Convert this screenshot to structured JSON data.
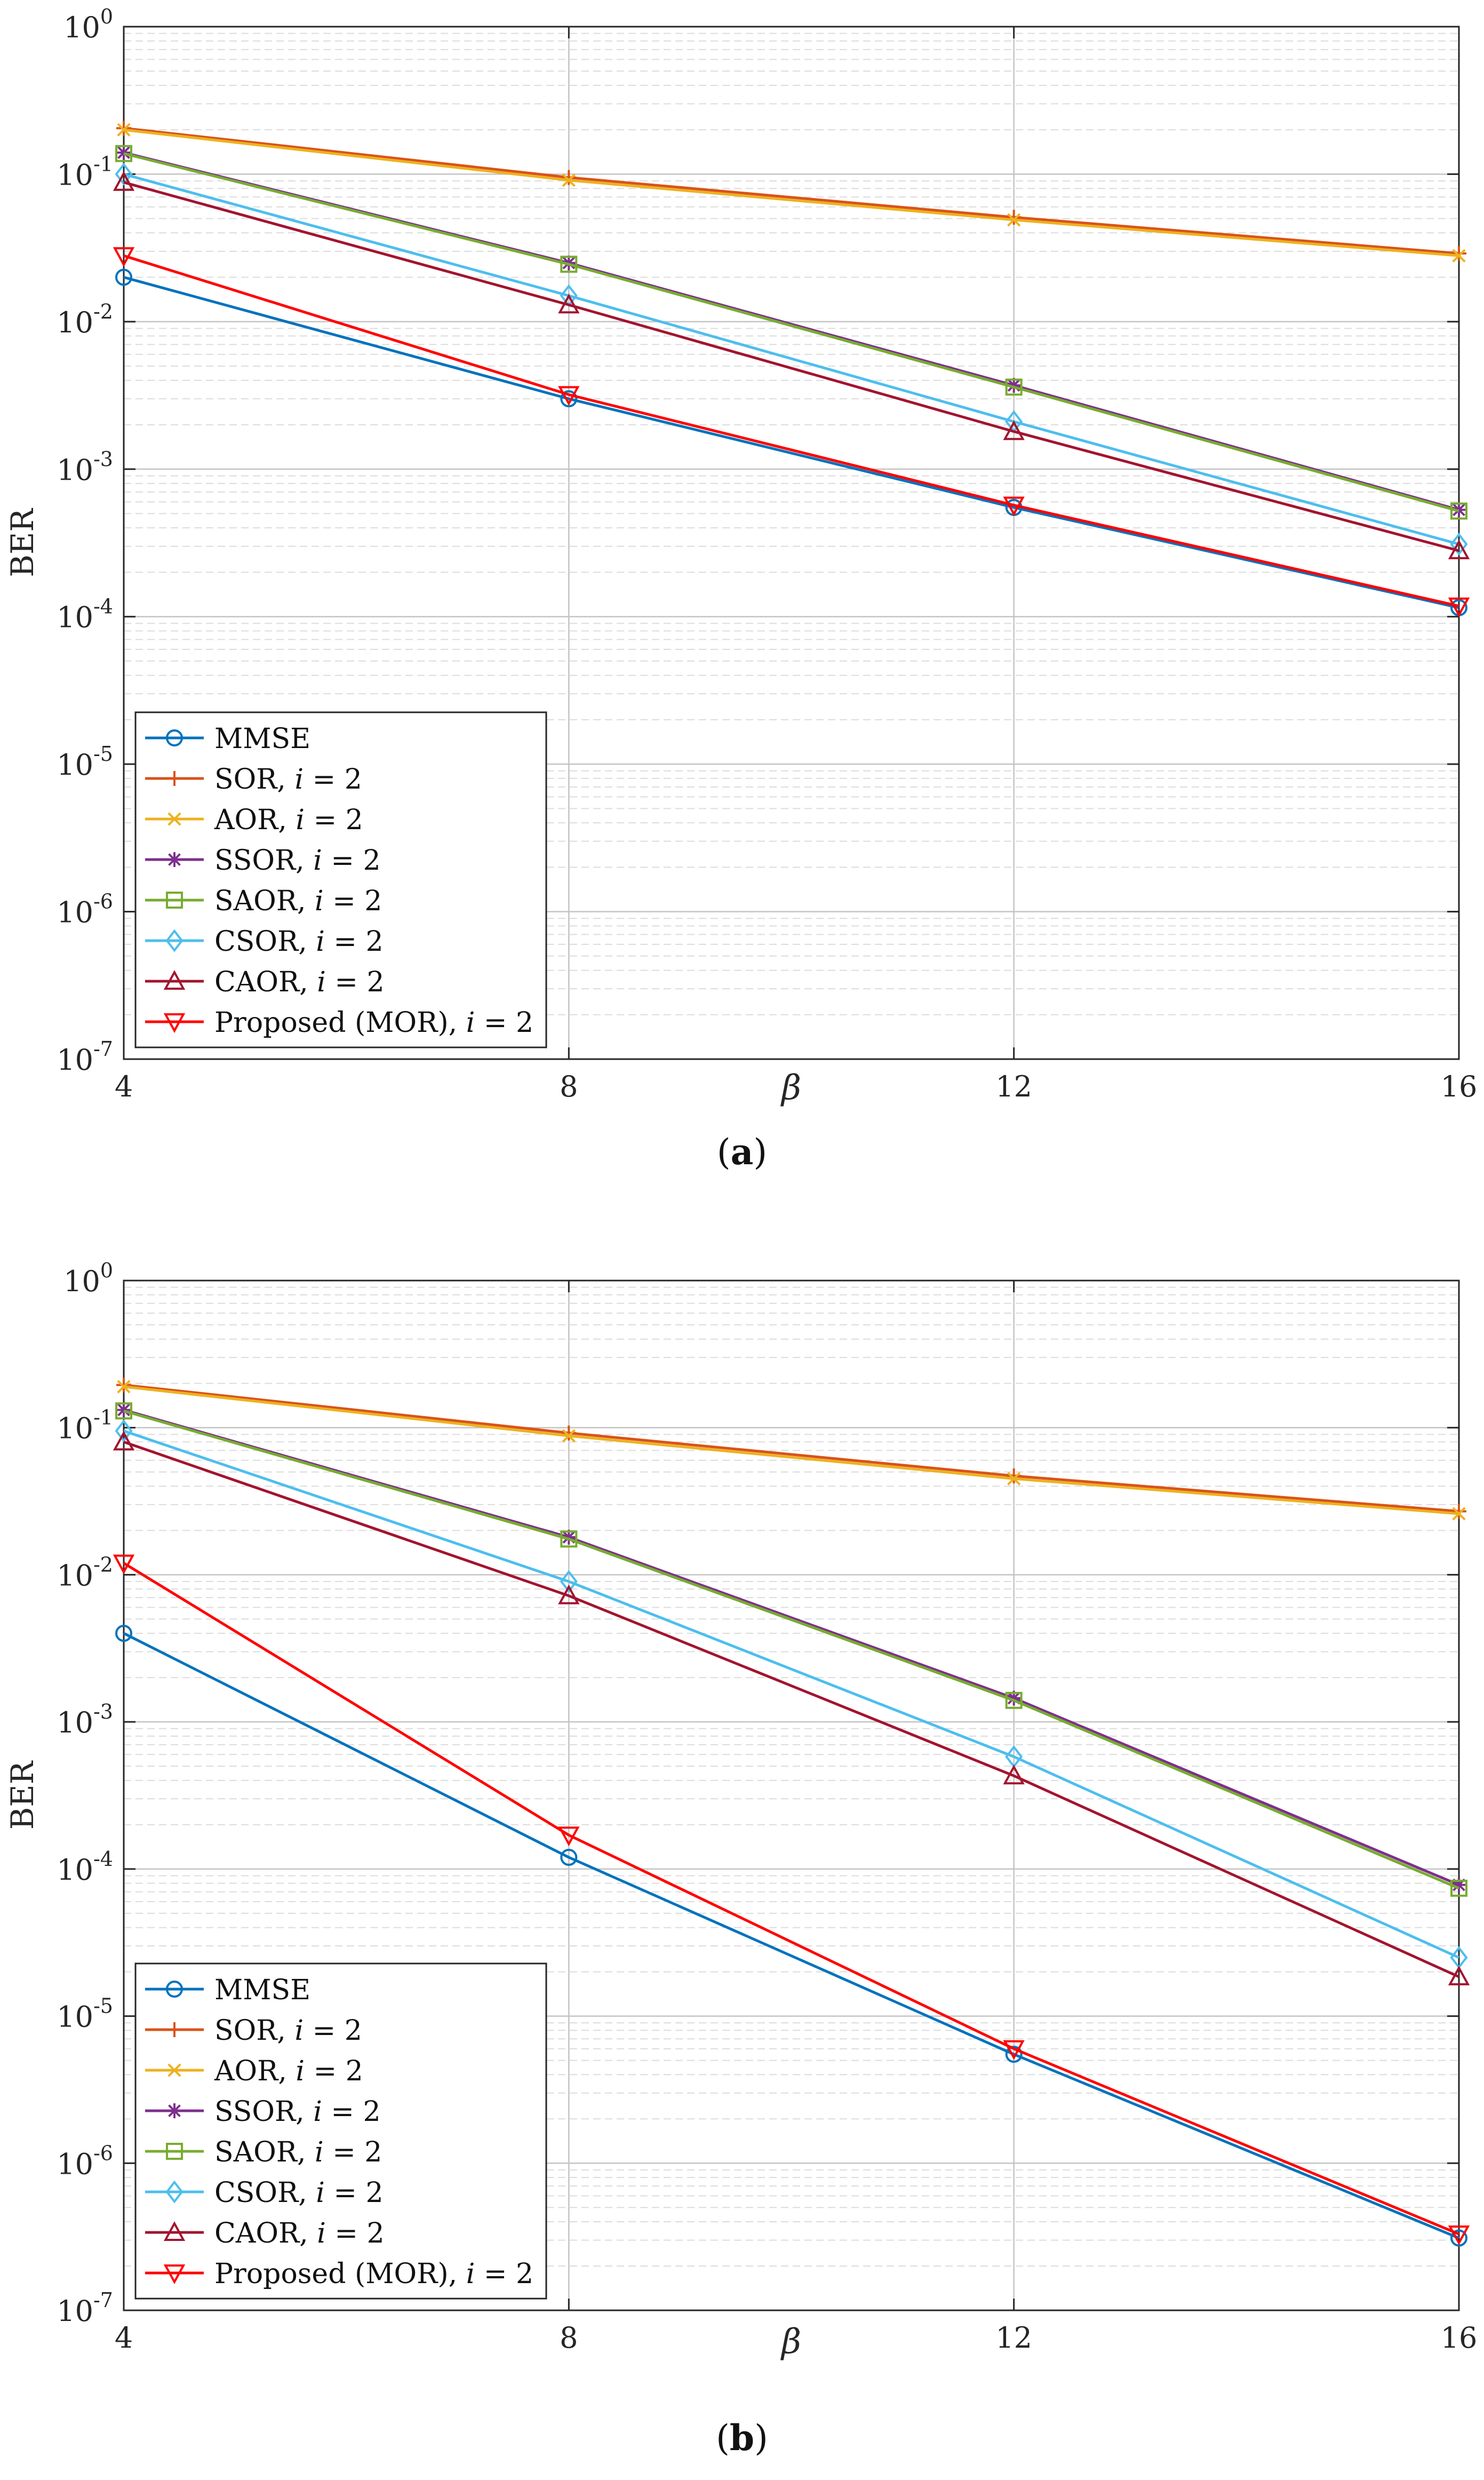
{
  "chart_data": [
    {
      "type": "line",
      "panel": "a",
      "caption": "a",
      "xlabel": "β",
      "ylabel": "BER",
      "yscale": "log",
      "ylim": [
        1e-07,
        1
      ],
      "xlim": [
        4,
        16
      ],
      "grid": true,
      "legend_position": "bottom-left",
      "x": [
        4,
        8,
        12,
        16
      ],
      "x_ticks": [
        "4",
        "8",
        "12",
        "16"
      ],
      "y_ticks": [
        {
          "base": "10",
          "exp": "0"
        },
        {
          "base": "10",
          "exp": "-1"
        },
        {
          "base": "10",
          "exp": "-2"
        },
        {
          "base": "10",
          "exp": "-3"
        },
        {
          "base": "10",
          "exp": "-4"
        },
        {
          "base": "10",
          "exp": "-5"
        },
        {
          "base": "10",
          "exp": "-6"
        },
        {
          "base": "10",
          "exp": "-7"
        }
      ],
      "series": [
        {
          "name": "MMSE",
          "legend_main": "MMSE",
          "legend_i": "",
          "legend_rest": "",
          "color": "#0072BD",
          "marker": "circle",
          "values": [
            0.02,
            0.003,
            0.00055,
            0.000115
          ]
        },
        {
          "name": "SOR, i = 2",
          "legend_main": "SOR, ",
          "legend_i": "i",
          "legend_rest": " = 2",
          "color": "#D95319",
          "marker": "plus",
          "values": [
            0.205,
            0.095,
            0.051,
            0.029
          ]
        },
        {
          "name": "AOR, i = 2",
          "legend_main": "AOR, ",
          "legend_i": "i",
          "legend_rest": " = 2",
          "color": "#EDB120",
          "marker": "x",
          "values": [
            0.2,
            0.091,
            0.049,
            0.028
          ]
        },
        {
          "name": "SSOR, i = 2",
          "legend_main": "SSOR, ",
          "legend_i": "i",
          "legend_rest": " = 2",
          "color": "#7E2F8E",
          "marker": "star",
          "values": [
            0.14,
            0.025,
            0.0037,
            0.00053
          ]
        },
        {
          "name": "SAOR, i = 2",
          "legend_main": "SAOR, ",
          "legend_i": "i",
          "legend_rest": " = 2",
          "color": "#77AC30",
          "marker": "square",
          "values": [
            0.138,
            0.0245,
            0.0036,
            0.00052
          ]
        },
        {
          "name": "CSOR, i = 2",
          "legend_main": "CSOR, ",
          "legend_i": "i",
          "legend_rest": " = 2",
          "color": "#4DBEEE",
          "marker": "diamond",
          "values": [
            0.1,
            0.015,
            0.0021,
            0.00031
          ]
        },
        {
          "name": "CAOR, i = 2",
          "legend_main": "CAOR, ",
          "legend_i": "i",
          "legend_rest": " = 2",
          "color": "#A2142F",
          "marker": "triangle-up",
          "values": [
            0.088,
            0.013,
            0.0018,
            0.00028
          ]
        },
        {
          "name": "Proposed (MOR), i = 2",
          "legend_main": "Proposed (MOR), ",
          "legend_i": "i",
          "legend_rest": " = 2",
          "color": "#FF0000",
          "marker": "triangle-down",
          "values": [
            0.028,
            0.0032,
            0.00057,
            0.000118
          ]
        }
      ]
    },
    {
      "type": "line",
      "panel": "b",
      "caption": "b",
      "xlabel": "β",
      "ylabel": "BER",
      "yscale": "log",
      "ylim": [
        1e-07,
        1
      ],
      "xlim": [
        4,
        16
      ],
      "grid": true,
      "legend_position": "bottom-left",
      "x": [
        4,
        8,
        12,
        16
      ],
      "x_ticks": [
        "4",
        "8",
        "12",
        "16"
      ],
      "y_ticks": [
        {
          "base": "10",
          "exp": "0"
        },
        {
          "base": "10",
          "exp": "-1"
        },
        {
          "base": "10",
          "exp": "-2"
        },
        {
          "base": "10",
          "exp": "-3"
        },
        {
          "base": "10",
          "exp": "-4"
        },
        {
          "base": "10",
          "exp": "-5"
        },
        {
          "base": "10",
          "exp": "-6"
        },
        {
          "base": "10",
          "exp": "-7"
        }
      ],
      "series": [
        {
          "name": "MMSE",
          "legend_main": "MMSE",
          "legend_i": "",
          "legend_rest": "",
          "color": "#0072BD",
          "marker": "circle",
          "values": [
            0.004,
            0.00012,
            5.5e-06,
            3.1e-07
          ]
        },
        {
          "name": "SOR, i = 2",
          "legend_main": "SOR, ",
          "legend_i": "i",
          "legend_rest": " = 2",
          "color": "#D95319",
          "marker": "plus",
          "values": [
            0.195,
            0.092,
            0.047,
            0.027
          ]
        },
        {
          "name": "AOR, i = 2",
          "legend_main": "AOR, ",
          "legend_i": "i",
          "legend_rest": " = 2",
          "color": "#EDB120",
          "marker": "x",
          "values": [
            0.19,
            0.088,
            0.045,
            0.026
          ]
        },
        {
          "name": "SSOR, i = 2",
          "legend_main": "SSOR, ",
          "legend_i": "i",
          "legend_rest": " = 2",
          "color": "#7E2F8E",
          "marker": "star",
          "values": [
            0.132,
            0.018,
            0.00145,
            7.8e-05
          ]
        },
        {
          "name": "SAOR, i = 2",
          "legend_main": "SAOR, ",
          "legend_i": "i",
          "legend_rest": " = 2",
          "color": "#77AC30",
          "marker": "square",
          "values": [
            0.13,
            0.0175,
            0.0014,
            7.4e-05
          ]
        },
        {
          "name": "CSOR, i = 2",
          "legend_main": "CSOR, ",
          "legend_i": "i",
          "legend_rest": " = 2",
          "color": "#4DBEEE",
          "marker": "diamond",
          "values": [
            0.095,
            0.009,
            0.00058,
            2.5e-05
          ]
        },
        {
          "name": "CAOR, i = 2",
          "legend_main": "CAOR, ",
          "legend_i": "i",
          "legend_rest": " = 2",
          "color": "#A2142F",
          "marker": "triangle-up",
          "values": [
            0.08,
            0.0072,
            0.00043,
            1.85e-05
          ]
        },
        {
          "name": "Proposed (MOR), i = 2",
          "legend_main": "Proposed (MOR), ",
          "legend_i": "i",
          "legend_rest": " = 2",
          "color": "#FF0000",
          "marker": "triangle-down",
          "values": [
            0.012,
            0.00017,
            6e-06,
            3.3e-07
          ]
        }
      ]
    }
  ]
}
